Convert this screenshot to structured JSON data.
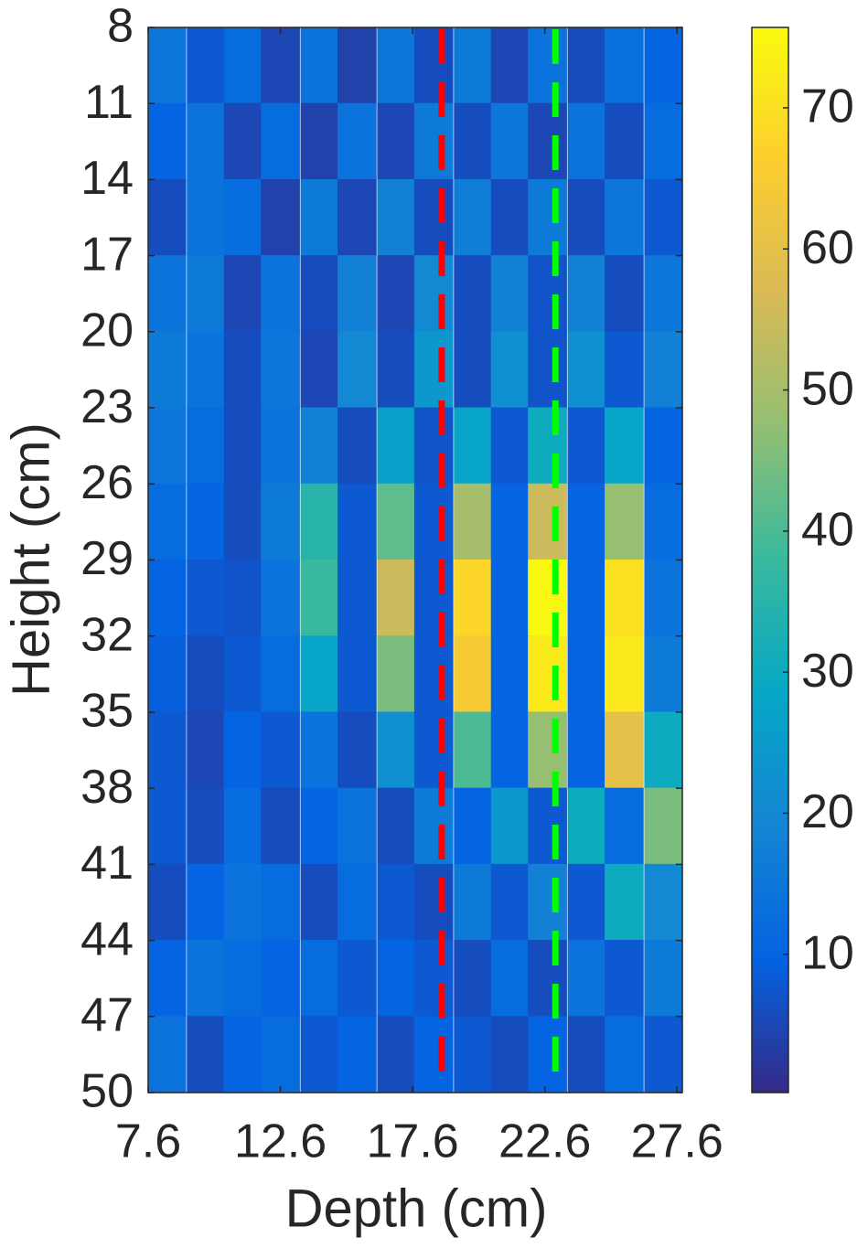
{
  "chart_data": {
    "type": "heatmap",
    "xlabel": "Depth (cm)",
    "ylabel": "Height (cm)",
    "x": [
      8.3,
      9.8,
      11.2,
      12.6,
      14.1,
      15.5,
      17.0,
      18.4,
      19.9,
      21.3,
      22.7,
      24.2,
      25.6,
      27.1
    ],
    "y": [
      9.5,
      12.5,
      15.5,
      18.5,
      21.5,
      24.5,
      27.5,
      30.5,
      33.5,
      36.5,
      39.5,
      42.5,
      45.5,
      48.5
    ],
    "z": [
      [
        15,
        8,
        12,
        5,
        14,
        4,
        15,
        6,
        16,
        5,
        14,
        6,
        13,
        10
      ],
      [
        10,
        14,
        5,
        12,
        4,
        14,
        5,
        16,
        6,
        15,
        5,
        14,
        6,
        12
      ],
      [
        6,
        14,
        12,
        4,
        16,
        5,
        18,
        6,
        17,
        6,
        16,
        6,
        15,
        8
      ],
      [
        14,
        16,
        5,
        14,
        6,
        18,
        5,
        20,
        6,
        18,
        7,
        18,
        6,
        15
      ],
      [
        16,
        14,
        6,
        15,
        5,
        20,
        6,
        24,
        6,
        22,
        7,
        22,
        8,
        18
      ],
      [
        15,
        12,
        6,
        14,
        18,
        6,
        26,
        7,
        28,
        8,
        30,
        8,
        28,
        10
      ],
      [
        12,
        10,
        6,
        16,
        35,
        8,
        42,
        8,
        50,
        10,
        55,
        10,
        48,
        12
      ],
      [
        10,
        8,
        7,
        14,
        38,
        8,
        55,
        8,
        68,
        10,
        75,
        10,
        70,
        14
      ],
      [
        9,
        6,
        8,
        12,
        28,
        8,
        45,
        8,
        65,
        10,
        72,
        10,
        72,
        16
      ],
      [
        8,
        5,
        10,
        8,
        14,
        6,
        22,
        8,
        40,
        10,
        48,
        10,
        60,
        30
      ],
      [
        8,
        6,
        12,
        6,
        10,
        14,
        6,
        16,
        10,
        24,
        8,
        30,
        12,
        45
      ],
      [
        6,
        10,
        14,
        12,
        6,
        12,
        8,
        6,
        16,
        8,
        18,
        8,
        30,
        20
      ],
      [
        10,
        14,
        12,
        10,
        12,
        8,
        10,
        8,
        6,
        12,
        6,
        14,
        8,
        16
      ],
      [
        14,
        6,
        10,
        12,
        8,
        10,
        6,
        10,
        8,
        6,
        10,
        6,
        12,
        8
      ]
    ],
    "xlim": [
      7.6,
      27.8
    ],
    "xticks": [
      7.6,
      12.6,
      17.6,
      22.6,
      27.6
    ],
    "ylim": [
      8,
      50
    ],
    "yticks": [
      8,
      11,
      14,
      17,
      20,
      23,
      26,
      29,
      32,
      35,
      38,
      41,
      44,
      47,
      50
    ],
    "y_reversed": true,
    "clim": [
      0.2,
      75.7
    ],
    "cticks": [
      10,
      20,
      30,
      40,
      50,
      60,
      70
    ],
    "colormap": [
      "#352a87",
      "#0363e1",
      "#1485d4",
      "#06a7c6",
      "#38b99e",
      "#92bf73",
      "#d9ba56",
      "#fcce2e",
      "#f9fb0e"
    ],
    "lines": [
      {
        "x": 18.7,
        "color": "#ff0000"
      },
      {
        "x": 23.0,
        "color": "#00ff00"
      }
    ]
  }
}
